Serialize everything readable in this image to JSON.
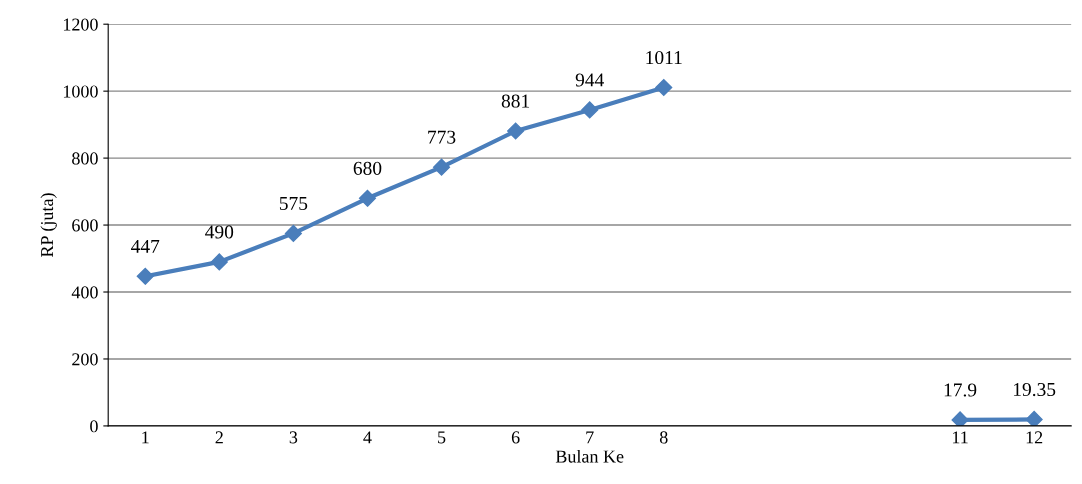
{
  "chart_data": {
    "type": "line",
    "xlabel": "Bulan Ke",
    "ylabel": "RP (juta)",
    "categories": [
      "1",
      "2",
      "3",
      "4",
      "5",
      "6",
      "7",
      "8",
      null,
      null,
      null,
      "11",
      "12"
    ],
    "series": [
      {
        "color": "#4a7ebb",
        "values": [
          447,
          490,
          575,
          680,
          773,
          881,
          944,
          1011,
          null,
          null,
          null,
          17.9,
          19.35
        ]
      }
    ],
    "ylim": [
      0,
      1200
    ],
    "yticks": [
      0,
      200,
      400,
      600,
      800,
      1000,
      1200
    ],
    "grid": "y",
    "marker": "diamond",
    "line_style": "solid",
    "data_labels": true,
    "legend": false
  }
}
